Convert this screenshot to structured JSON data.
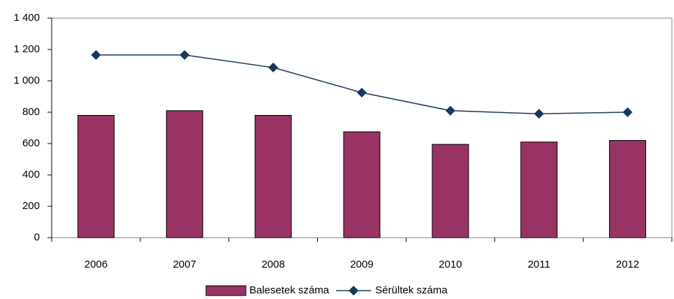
{
  "chart_data": {
    "type": "bar_line",
    "categories": [
      "2006",
      "2007",
      "2008",
      "2009",
      "2010",
      "2011",
      "2012"
    ],
    "series": [
      {
        "name": "Balesetek száma",
        "type": "bar",
        "color": "#993366",
        "values": [
          780,
          810,
          780,
          675,
          595,
          610,
          620
        ]
      },
      {
        "name": "Sérültek száma",
        "type": "line",
        "color": "#17375e",
        "values": [
          1165,
          1165,
          1085,
          925,
          810,
          790,
          800
        ]
      }
    ],
    "ylim": [
      0,
      1400
    ],
    "yticks": [
      0,
      200,
      400,
      600,
      800,
      {
        "value": 1000,
        "label": "1 000"
      },
      {
        "value": 1200,
        "label": "1 200"
      },
      {
        "value": 1400,
        "label": "1 400"
      }
    ],
    "grid": false,
    "legend": "bottom"
  }
}
